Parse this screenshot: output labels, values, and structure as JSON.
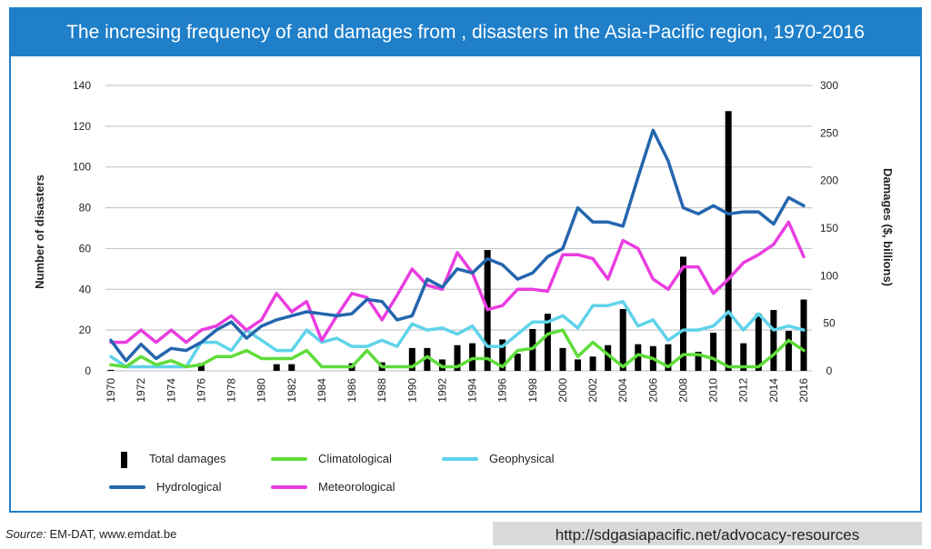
{
  "title": "The incresing frequency of and damages from , disasters in the Asia-Pacific region, 1970-2016",
  "source_label": "Source:",
  "source_text": "EM-DAT, www.emdat.be",
  "url": "http://sdgasiapacific.net/advocacy-resources",
  "colors": {
    "frame": "#1f7fc9",
    "damages": "#000000",
    "hydrological": "#2466ae",
    "meteorological": "#e93de0",
    "geophysical": "#5fd3ea",
    "climatological": "#5fdc3a",
    "grid": "#bcbec0"
  },
  "chart_data": {
    "type": "bar+line",
    "title": "The incresing frequency of and damages from , disasters in the Asia-Pacific region, 1970-2016",
    "ylabel": "Number of disasters",
    "y2label": "Damages ($, billions)",
    "ylim": [
      0,
      140
    ],
    "y2lim": [
      0,
      300
    ],
    "yticks": [
      0,
      20,
      40,
      60,
      80,
      100,
      120,
      140
    ],
    "y2ticks": [
      0,
      50,
      100,
      150,
      200,
      250,
      300
    ],
    "x": [
      1970,
      1971,
      1972,
      1973,
      1974,
      1975,
      1976,
      1977,
      1978,
      1979,
      1980,
      1981,
      1982,
      1983,
      1984,
      1985,
      1986,
      1987,
      1988,
      1989,
      1990,
      1991,
      1992,
      1993,
      1994,
      1995,
      1996,
      1997,
      1998,
      1999,
      2000,
      2001,
      2002,
      2003,
      2004,
      2005,
      2006,
      2007,
      2008,
      2009,
      2010,
      2011,
      2012,
      2013,
      2014,
      2015,
      2016
    ],
    "xtick_labels": [
      "1970",
      "1972",
      "1974",
      "1976",
      "1978",
      "1980",
      "1982",
      "1984",
      "1986",
      "1988",
      "1990",
      "1992",
      "1994",
      "1996",
      "1998",
      "2000",
      "2002",
      "2004",
      "2006",
      "2008",
      "2010",
      "2012",
      "2014",
      "2016"
    ],
    "grid": true,
    "legend_position": "bottom",
    "series": [
      {
        "name": "Total damages",
        "type": "bar",
        "axis": "right",
        "color": "#000000",
        "values": [
          1,
          0,
          0,
          0,
          0,
          0,
          8,
          0,
          0,
          0,
          0,
          7,
          7,
          0,
          0,
          0,
          8,
          0,
          9,
          0,
          24,
          24,
          12,
          27,
          29,
          127,
          33,
          18,
          44,
          60,
          24,
          12,
          15,
          27,
          65,
          28,
          26,
          28,
          120,
          20,
          40,
          273,
          29,
          60,
          64,
          42,
          75
        ]
      },
      {
        "name": "Climatological",
        "type": "line",
        "axis": "left",
        "color": "#5fdc3a",
        "values": [
          3,
          2,
          7,
          3,
          5,
          2,
          3,
          7,
          7,
          10,
          6,
          6,
          6,
          10,
          2,
          2,
          2,
          10,
          2,
          2,
          2,
          7,
          2,
          2,
          6,
          6,
          2,
          10,
          11,
          18,
          20,
          7,
          14,
          8,
          2,
          8,
          6,
          2,
          8,
          8,
          6,
          2,
          2,
          2,
          8,
          15,
          10
        ]
      },
      {
        "name": "Geophysical",
        "type": "line",
        "axis": "left",
        "color": "#5fd3ea",
        "values": [
          7,
          2,
          2,
          2,
          2,
          2,
          14,
          14,
          10,
          20,
          15,
          10,
          10,
          20,
          14,
          16,
          12,
          12,
          15,
          12,
          23,
          20,
          21,
          18,
          22,
          12,
          12,
          18,
          24,
          24,
          27,
          21,
          32,
          32,
          34,
          22,
          25,
          15,
          20,
          20,
          22,
          29,
          20,
          28,
          20,
          22,
          20
        ]
      },
      {
        "name": "Hydrological",
        "type": "line",
        "axis": "left",
        "color": "#2466ae",
        "values": [
          15,
          5,
          13,
          6,
          11,
          10,
          14,
          20,
          24,
          16,
          22,
          25,
          27,
          29,
          28,
          27,
          28,
          35,
          34,
          25,
          27,
          45,
          41,
          50,
          48,
          55,
          52,
          45,
          48,
          56,
          60,
          80,
          73,
          73,
          71,
          95,
          118,
          103,
          80,
          77,
          81,
          77,
          78,
          78,
          72,
          85,
          81
        ]
      },
      {
        "name": "Meteorological",
        "type": "line",
        "axis": "left",
        "color": "#e93de0",
        "values": [
          14,
          14,
          20,
          14,
          20,
          14,
          20,
          22,
          27,
          20,
          25,
          38,
          29,
          34,
          15,
          27,
          38,
          36,
          25,
          37,
          50,
          42,
          40,
          58,
          48,
          30,
          32,
          40,
          40,
          39,
          57,
          57,
          55,
          45,
          64,
          60,
          45,
          40,
          51,
          51,
          38,
          45,
          53,
          57,
          62,
          73,
          56
        ]
      }
    ]
  }
}
